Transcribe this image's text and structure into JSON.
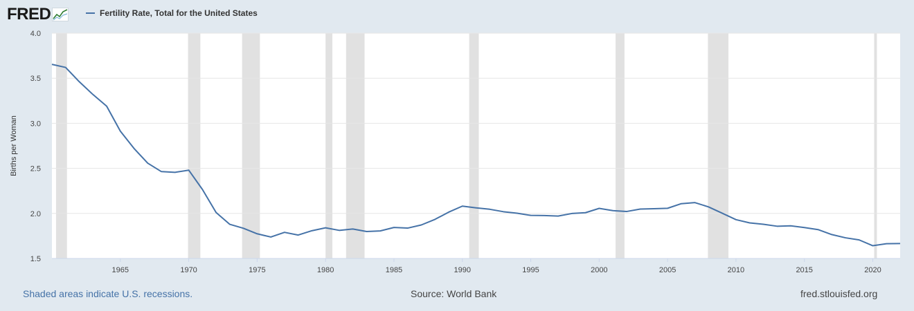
{
  "brand": {
    "logo": "FRED",
    "logo_icon": "chart-line-icon"
  },
  "legend": {
    "label": "Fertility Rate, Total for the United States",
    "color": "#4572a7"
  },
  "footer": {
    "recessions_note": "Shaded areas indicate U.S. recessions.",
    "source": "Source: World Bank",
    "site": "fred.stlouisfed.org"
  },
  "chart_data": {
    "type": "line",
    "title": "Fertility Rate, Total for the United States",
    "xlabel": "",
    "ylabel": "Births per Woman",
    "xlim": [
      1960,
      2022
    ],
    "ylim": [
      1.5,
      4.0
    ],
    "yticks": [
      "1.5",
      "2.0",
      "2.5",
      "3.0",
      "3.5",
      "4.0"
    ],
    "xticks": [
      "1965",
      "1970",
      "1975",
      "1980",
      "1985",
      "1990",
      "1995",
      "2000",
      "2005",
      "2010",
      "2015",
      "2020"
    ],
    "grid": true,
    "line_color": "#4572a7",
    "recession_color": "#e1e1e1",
    "recessions": [
      [
        1960.3,
        1961.1
      ],
      [
        1969.95,
        1970.85
      ],
      [
        1973.9,
        1975.2
      ],
      [
        1980.0,
        1980.5
      ],
      [
        1981.5,
        1982.85
      ],
      [
        1990.5,
        1991.2
      ],
      [
        2001.2,
        2001.85
      ],
      [
        2007.95,
        2009.45
      ],
      [
        2020.1,
        2020.3
      ]
    ],
    "series": [
      {
        "name": "Fertility Rate, Total for the United States",
        "x": [
          1960,
          1961,
          1962,
          1963,
          1964,
          1965,
          1966,
          1967,
          1968,
          1969,
          1970,
          1971,
          1972,
          1973,
          1974,
          1975,
          1976,
          1977,
          1978,
          1979,
          1980,
          1981,
          1982,
          1983,
          1984,
          1985,
          1986,
          1987,
          1988,
          1989,
          1990,
          1991,
          1992,
          1993,
          1994,
          1995,
          1996,
          1997,
          1998,
          1999,
          2000,
          2001,
          2002,
          2003,
          2004,
          2005,
          2006,
          2007,
          2008,
          2009,
          2010,
          2011,
          2012,
          2013,
          2014,
          2015,
          2016,
          2017,
          2018,
          2019,
          2020,
          2021,
          2022
        ],
        "values": [
          3.654,
          3.62,
          3.461,
          3.319,
          3.19,
          2.913,
          2.721,
          2.558,
          2.464,
          2.456,
          2.48,
          2.266,
          2.01,
          1.879,
          1.835,
          1.774,
          1.738,
          1.79,
          1.76,
          1.808,
          1.84,
          1.812,
          1.827,
          1.799,
          1.806,
          1.844,
          1.837,
          1.872,
          1.934,
          2.014,
          2.081,
          2.062,
          2.046,
          2.019,
          2.002,
          1.978,
          1.976,
          1.971,
          1.999,
          2.008,
          2.056,
          2.031,
          2.021,
          2.048,
          2.052,
          2.057,
          2.108,
          2.12,
          2.072,
          2.002,
          1.931,
          1.895,
          1.88,
          1.858,
          1.8625,
          1.8435,
          1.8205,
          1.7655,
          1.7295,
          1.706,
          1.6415,
          1.664,
          1.6655
        ]
      }
    ]
  }
}
